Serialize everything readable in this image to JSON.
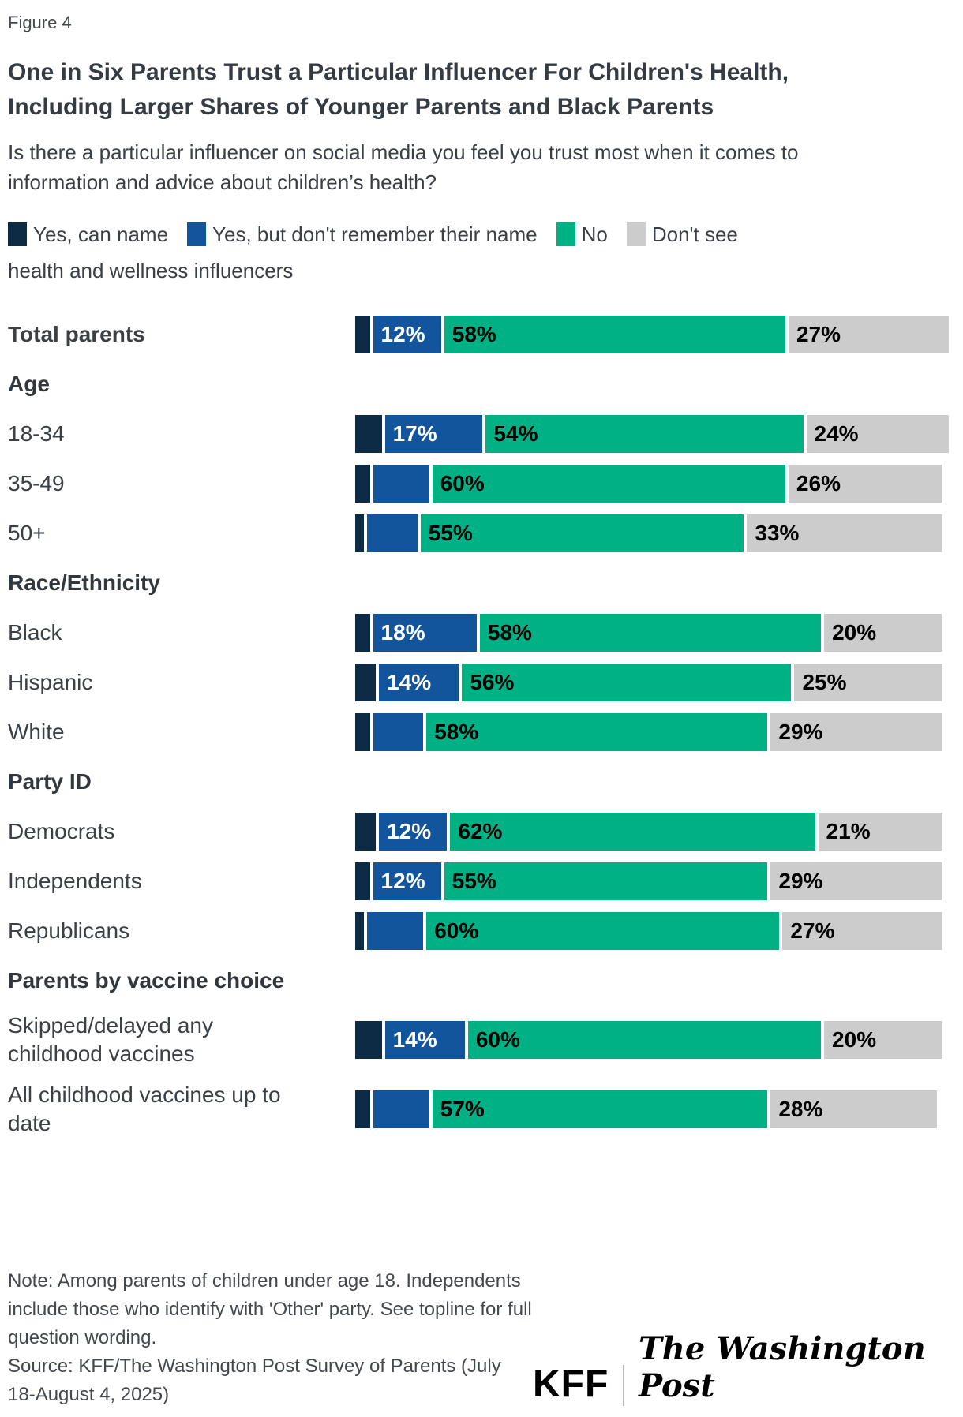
{
  "figure_label": "Figure 4",
  "title": "One in Six Parents Trust a Particular Influencer For Children's Health, Including Larger Shares of Younger Parents and Black Parents",
  "subtitle": "Is there a particular influencer on social media you feel you trust most when it comes to information and advice about children’s health?",
  "colors": {
    "yes_can_name": "#0d2b45",
    "yes_no_name": "#12559c",
    "no": "#00b185",
    "dont_see": "#cccccc",
    "label_on_blue": "#ffffff",
    "label_on_green": "#000000",
    "label_on_gray": "#000000",
    "title_text": "#343b42"
  },
  "legend": {
    "items": [
      {
        "label": "Yes, can name",
        "color": "#0d2b45"
      },
      {
        "label": "Yes, but don't remember their name",
        "color": "#12559c"
      },
      {
        "label": "No",
        "color": "#00b185"
      },
      {
        "label": "Don't see health and wellness influencers",
        "color": "#cccccc",
        "label_wrap1": "Don't see",
        "label_wrap2": "health and wellness influencers"
      }
    ]
  },
  "chart_data": {
    "type": "bar",
    "stacked": true,
    "horizontal": true,
    "unit": "%",
    "xlim": [
      0,
      100
    ],
    "grid": false,
    "legend_position": "top",
    "categories": [
      "Total parents",
      "18-34",
      "35-49",
      "50+",
      "Black",
      "Hispanic",
      "White",
      "Democrats",
      "Independents",
      "Republicans",
      "Skipped/delayed any childhood vaccines",
      "All childhood vaccines up to date"
    ],
    "series": [
      {
        "name": "Yes, can name",
        "color": "#0d2b45",
        "values": [
          3,
          5,
          3,
          2,
          3,
          4,
          3,
          4,
          3,
          2,
          5,
          3
        ],
        "labeled": [
          false,
          false,
          false,
          false,
          false,
          false,
          false,
          false,
          false,
          false,
          false,
          false
        ]
      },
      {
        "name": "Yes, but don't remember their name",
        "color": "#12559c",
        "values": [
          12,
          17,
          10,
          9,
          18,
          14,
          9,
          12,
          12,
          10,
          14,
          10
        ],
        "labeled": [
          true,
          true,
          false,
          false,
          true,
          true,
          false,
          true,
          true,
          false,
          true,
          false
        ]
      },
      {
        "name": "No",
        "color": "#00b185",
        "values": [
          58,
          54,
          60,
          55,
          58,
          56,
          58,
          62,
          55,
          60,
          60,
          57
        ],
        "labeled": [
          true,
          true,
          true,
          true,
          true,
          true,
          true,
          true,
          true,
          true,
          true,
          true
        ]
      },
      {
        "name": "Don't see health and wellness influencers",
        "color": "#cccccc",
        "values": [
          27,
          24,
          26,
          33,
          20,
          25,
          29,
          21,
          29,
          27,
          20,
          28
        ],
        "labeled": [
          true,
          true,
          true,
          true,
          true,
          true,
          true,
          true,
          true,
          true,
          true,
          true
        ]
      }
    ],
    "sections": [
      {
        "header": "",
        "row_indexes": [
          0
        ]
      },
      {
        "header": "Age",
        "row_indexes": [
          1,
          2,
          3
        ]
      },
      {
        "header": "Race/Ethnicity",
        "row_indexes": [
          4,
          5,
          6
        ]
      },
      {
        "header": "Party ID",
        "row_indexes": [
          7,
          8,
          9
        ]
      },
      {
        "header": "Parents by vaccine choice",
        "row_indexes": [
          10,
          11
        ]
      }
    ],
    "row_styles": {
      "bold": [
        0
      ],
      "two_line": [
        10,
        11
      ]
    }
  },
  "note": "Note: Among parents of children under age 18. Independents include those who identify with 'Other' party. See topline for full question wording.",
  "source": "Source: KFF/The Washington Post Survey of Parents (July 18-August 4, 2025)",
  "logos": {
    "kff": "KFF",
    "wapo": "The Washington Post"
  }
}
